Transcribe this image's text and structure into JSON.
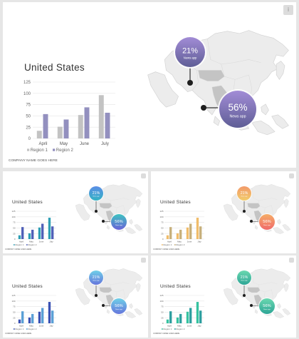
{
  "title": "United States",
  "footer": "COMPANY NAME GOES HERE",
  "bubbles": [
    {
      "value": "21%",
      "label": "News app"
    },
    {
      "value": "56%",
      "label": "News app"
    }
  ],
  "corner_icon": "info-icon",
  "chart_data": {
    "type": "bar",
    "categories": [
      "April",
      "May",
      "June",
      "July"
    ],
    "series": [
      {
        "name": "Region 1",
        "values": [
          17,
          26,
          52,
          96
        ]
      },
      {
        "name": "Region 2",
        "values": [
          54,
          42,
          69,
          57
        ]
      }
    ],
    "ylim": [
      0,
      125
    ],
    "yticks": [
      0,
      25,
      50,
      75,
      100,
      125
    ],
    "grid": true,
    "legend_position": "bottom"
  },
  "themes": [
    {
      "name": "purple",
      "region1": "#c3c3c3",
      "region2": "#9390bf",
      "bubble1": [
        "#a28cd6",
        "#5f5e96"
      ],
      "bubble2": [
        "#a28cd6",
        "#5f5e96"
      ]
    },
    {
      "name": "teal-blue",
      "region1": "#2e9fb4",
      "region2": "#5060b8",
      "bubble1": [
        "#5b8de6",
        "#34b3c4"
      ],
      "bubble2": [
        "#3ec3c0",
        "#6a62d8"
      ]
    },
    {
      "name": "orange",
      "region1": "#f0bc6a",
      "region2": "#c7b07c",
      "bubble1": [
        "#f29a6a",
        "#f2cc6a"
      ],
      "bubble2": [
        "#f5ad68",
        "#f06a6a"
      ]
    },
    {
      "name": "blue",
      "region1": "#3a52b4",
      "region2": "#5aa0d6",
      "bubble1": [
        "#6fd0e8",
        "#6676dc"
      ],
      "bubble2": [
        "#6fd0e8",
        "#6676dc"
      ]
    },
    {
      "name": "green",
      "region1": "#36c2a0",
      "region2": "#2e9fa0",
      "bubble1": [
        "#6ad8b0",
        "#2ea596"
      ],
      "bubble2": [
        "#6ad8b0",
        "#2ea596"
      ]
    }
  ]
}
